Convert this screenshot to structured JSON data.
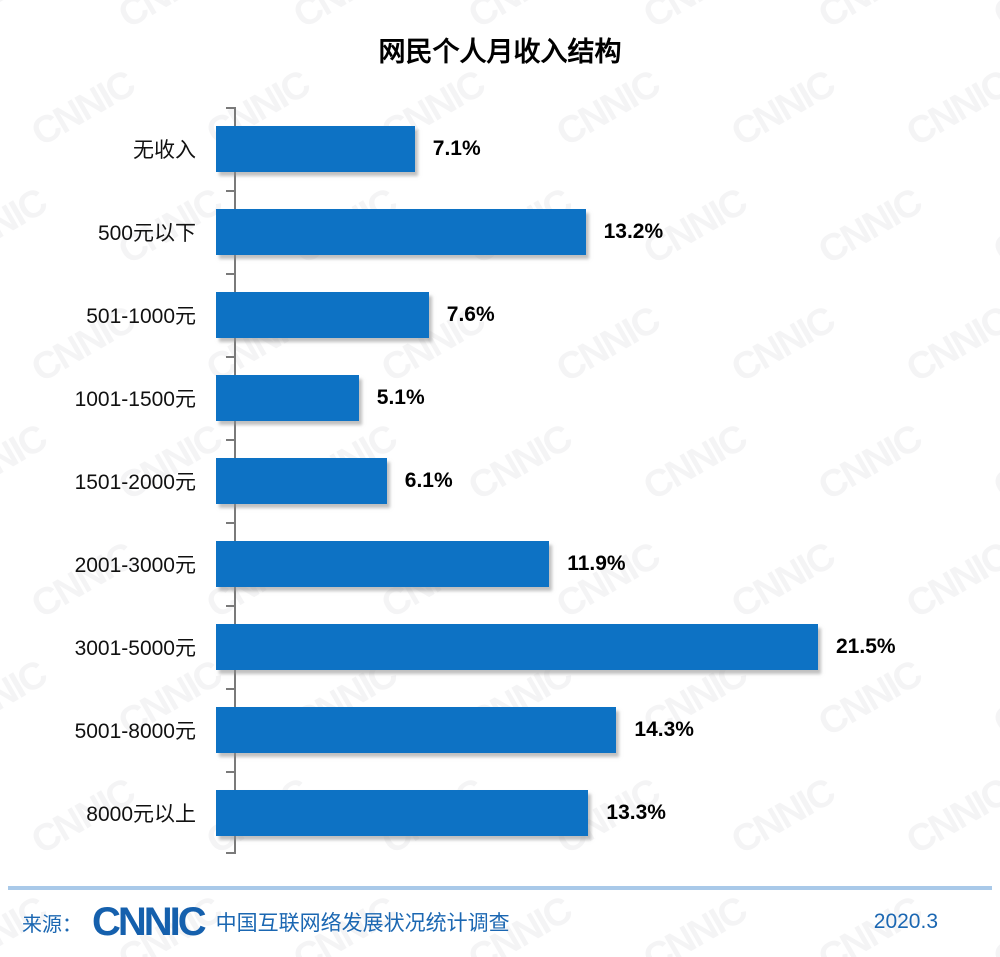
{
  "watermark": {
    "text": "CNNIC"
  },
  "chart_data": {
    "type": "bar",
    "orientation": "horizontal",
    "title": "网民个人月收入结构",
    "categories": [
      "无收入",
      "500元以下",
      "501-1000元",
      "1001-1500元",
      "1501-2000元",
      "2001-3000元",
      "3001-5000元",
      "5001-8000元",
      "8000元以上"
    ],
    "values": [
      7.1,
      13.2,
      7.6,
      5.1,
      6.1,
      11.9,
      21.5,
      14.3,
      13.3
    ],
    "value_labels": [
      "7.1%",
      "13.2%",
      "7.6%",
      "5.1%",
      "6.1%",
      "11.9%",
      "21.5%",
      "14.3%",
      "13.3%"
    ],
    "xlabel": "",
    "ylabel": "",
    "xlim": [
      0,
      22.5
    ],
    "grid": false,
    "legend": false,
    "bar_color": "#0d72c4",
    "axis_color": "#7a7a7a"
  },
  "footer": {
    "source_label": "来源：",
    "logo_text": "CNNIC",
    "source_name": "中国互联网络发展状况统计调查",
    "date": "2020.3",
    "accent_color": "#1b67b2"
  }
}
